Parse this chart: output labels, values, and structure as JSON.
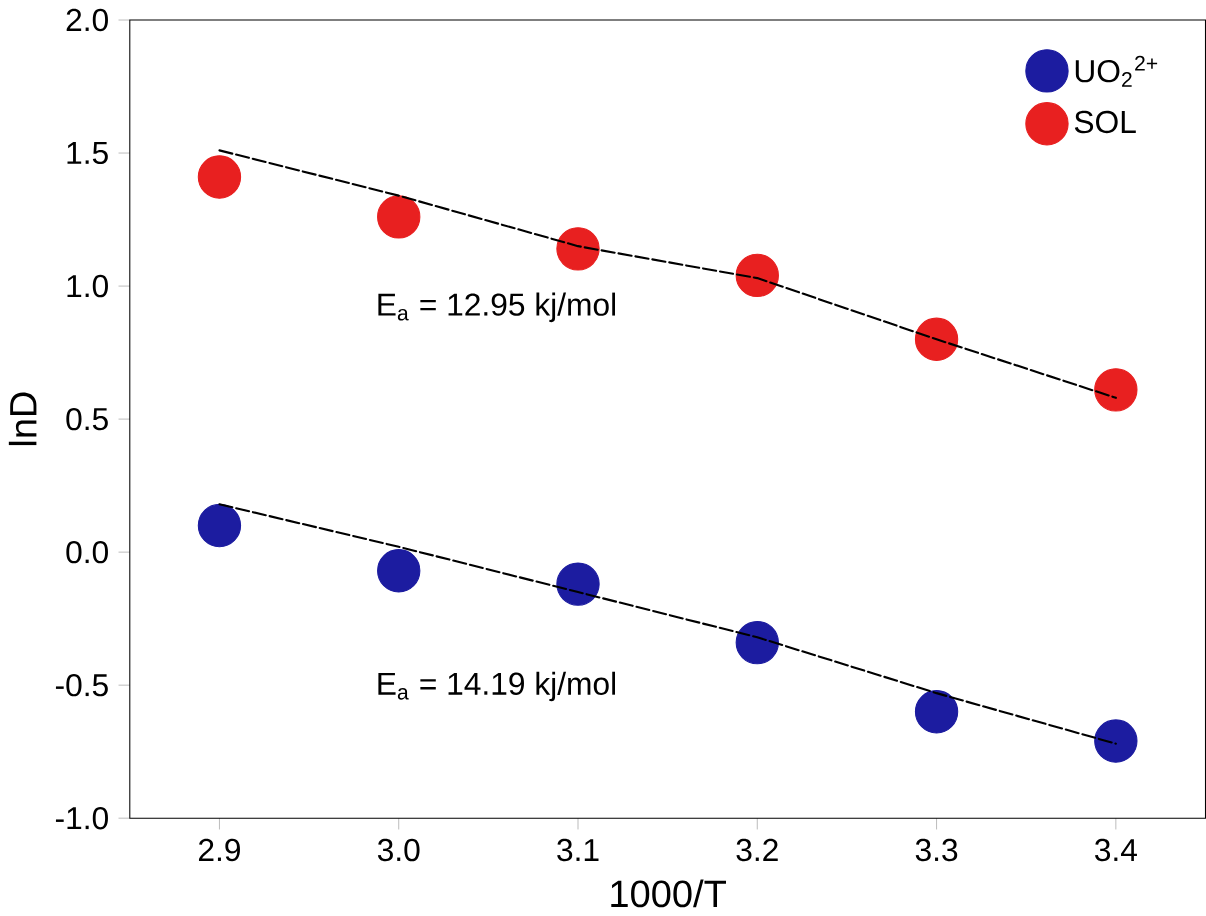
{
  "chart_data": {
    "type": "scatter",
    "xlabel": "1000/T",
    "ylabel": "lnD",
    "x": [
      2.9,
      3.0,
      3.1,
      3.2,
      3.3,
      3.4
    ],
    "series": [
      {
        "name": "UO$_{2}$$^{2+}$",
        "color": "#1c1ca0",
        "values": [
          0.1,
          -0.07,
          -0.12,
          -0.34,
          -0.6,
          -0.71
        ],
        "marker": "circle"
      },
      {
        "name": "SOL",
        "color": "#e82020",
        "values": [
          1.41,
          1.26,
          1.14,
          1.04,
          0.8,
          0.61
        ],
        "marker": "circle"
      },
      {
        "type": "line",
        "color": "#000000",
        "line_style": "dashed",
        "marker": "none",
        "values": [
          1.51,
          1.34,
          1.15,
          1.03,
          0.8,
          0.58
        ]
      },
      {
        "type": "line",
        "color": "#000000",
        "line_style": "dashed",
        "marker": "none",
        "values": [
          0.18,
          0.02,
          -0.15,
          -0.32,
          -0.53,
          -0.72
        ]
      }
    ],
    "xlim": [
      2.85,
      3.45
    ],
    "ylim": [
      -1.0,
      2.0
    ],
    "xticks": [
      {
        "value": 2.9,
        "label": "2.9"
      },
      {
        "value": 3.0,
        "label": "3.0"
      },
      {
        "value": 3.1,
        "label": "3.1"
      },
      {
        "value": 3.2,
        "label": "3.2"
      },
      {
        "value": 3.3,
        "label": "3.3"
      },
      {
        "value": 3.4,
        "label": "3.4"
      }
    ],
    "yticks": [
      {
        "value": -1.0,
        "label": "-1.0"
      },
      {
        "value": -0.5,
        "label": "-0.5"
      },
      {
        "value": 0.0,
        "label": "0.0"
      },
      {
        "value": 0.5,
        "label": "0.5"
      },
      {
        "value": 1.0,
        "label": "1.0"
      },
      {
        "value": 1.5,
        "label": "1.5"
      },
      {
        "value": 2.0,
        "label": "2.0"
      }
    ],
    "annotations": [
      "E$_{a}$ = 12.95 kj/mol",
      "E$_{a}$ = 14.19 kj/mol"
    ],
    "legend": "top right",
    "grid": false
  }
}
